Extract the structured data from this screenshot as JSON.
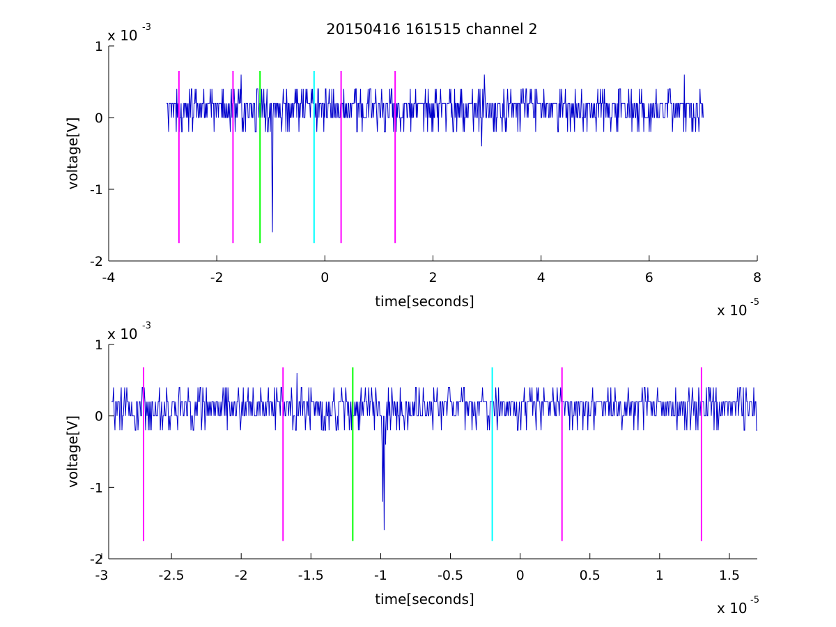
{
  "figure": {
    "title": "20150416 161515 channel 2"
  },
  "chart_data": [
    {
      "type": "line",
      "title": "20150416 161515 channel 2",
      "xlabel": "time[seconds]",
      "ylabel": "voltage[V]",
      "x_exponent_base": "x 10",
      "x_exponent_power": "-5",
      "y_exponent_base": "x 10",
      "y_exponent_power": "-3",
      "x_scale": 1e-05,
      "y_scale": 0.001,
      "xlim": [
        -4e-05,
        8e-05
      ],
      "ylim": [
        -0.002,
        0.001
      ],
      "xticks": [
        -4,
        -2,
        0,
        2,
        4,
        6,
        8
      ],
      "yticks": [
        1,
        0,
        -1,
        -2
      ],
      "grid": false,
      "series": [
        {
          "color": "#0000cc",
          "x_range": [
            -2.93e-05,
            7e-05
          ],
          "sample_step": 1e-07,
          "quantization_step": 0.0002,
          "baseline": 0.0,
          "noise_levels": [
            -0.0002,
            0.0,
            0.0002,
            0.0004
          ],
          "spikes": [
            {
              "x": -2.5e-05,
              "y": 0.0004
            },
            {
              "x": -1.55e-05,
              "y": 0.0006
            },
            {
              "x": -9.8e-06,
              "y": -0.0008
            },
            {
              "x": -9.7e-06,
              "y": -0.0016
            },
            {
              "x": 2.9e-05,
              "y": -0.0004
            },
            {
              "x": 2.95e-05,
              "y": 0.0006
            },
            {
              "x": 6.65e-05,
              "y": 0.0006
            }
          ]
        }
      ],
      "markers": [
        {
          "x": -2.7e-05,
          "color": "#ff00ff",
          "y_range": [
            -0.00175,
            0.00065
          ]
        },
        {
          "x": -1.7e-05,
          "color": "#ff00ff",
          "y_range": [
            -0.00175,
            0.00065
          ]
        },
        {
          "x": -1.2e-05,
          "color": "#00ff00",
          "y_range": [
            -0.00175,
            0.00065
          ]
        },
        {
          "x": -2e-06,
          "color": "#00ffff",
          "y_range": [
            -0.00175,
            0.00065
          ]
        },
        {
          "x": 3e-06,
          "color": "#ff00ff",
          "y_range": [
            -0.00175,
            0.00065
          ]
        },
        {
          "x": 1.3e-05,
          "color": "#ff00ff",
          "y_range": [
            -0.00175,
            0.00065
          ]
        }
      ]
    },
    {
      "type": "line",
      "title": "",
      "xlabel": "time[seconds]",
      "ylabel": "voltage[V]",
      "x_exponent_base": "x 10",
      "x_exponent_power": "-5",
      "y_exponent_base": "x 10",
      "y_exponent_power": "-3",
      "x_scale": 1e-05,
      "y_scale": 0.001,
      "xlim": [
        -2.95e-05,
        1.7e-05
      ],
      "ylim": [
        -0.002,
        0.001
      ],
      "xticks": [
        -3,
        -2.5,
        -2,
        -1.5,
        -1,
        -0.5,
        0,
        0.5,
        1,
        1.5
      ],
      "yticks": [
        1,
        0,
        -1,
        -2
      ],
      "grid": false,
      "series": [
        {
          "color": "#0000cc",
          "x_range": [
            -2.93e-05,
            1.7e-05
          ],
          "sample_step": 5e-08,
          "quantization_step": 0.0002,
          "baseline": 0.0,
          "noise_levels": [
            -0.0002,
            0.0,
            0.0002,
            0.0004
          ],
          "spikes": [
            {
              "x": -2.82e-05,
              "y": 0.0004
            },
            {
              "x": -1.6e-05,
              "y": 0.0006
            },
            {
              "x": -9.9e-06,
              "y": -0.0004
            },
            {
              "x": -9.85e-06,
              "y": -0.0012
            },
            {
              "x": -9.75e-06,
              "y": -0.0016
            },
            {
              "x": -9.65e-06,
              "y": -0.0004
            }
          ]
        }
      ],
      "markers": [
        {
          "x": -2.7e-05,
          "color": "#ff00ff",
          "y_range": [
            -0.00175,
            0.00068
          ]
        },
        {
          "x": -1.7e-05,
          "color": "#ff00ff",
          "y_range": [
            -0.00175,
            0.00068
          ]
        },
        {
          "x": -1.2e-05,
          "color": "#00ff00",
          "y_range": [
            -0.00175,
            0.00068
          ]
        },
        {
          "x": -2e-06,
          "color": "#00ffff",
          "y_range": [
            -0.00175,
            0.00068
          ]
        },
        {
          "x": 3e-06,
          "color": "#ff00ff",
          "y_range": [
            -0.00175,
            0.00068
          ]
        },
        {
          "x": 1.3e-05,
          "color": "#ff00ff",
          "y_range": [
            -0.00175,
            0.00068
          ]
        }
      ]
    }
  ]
}
